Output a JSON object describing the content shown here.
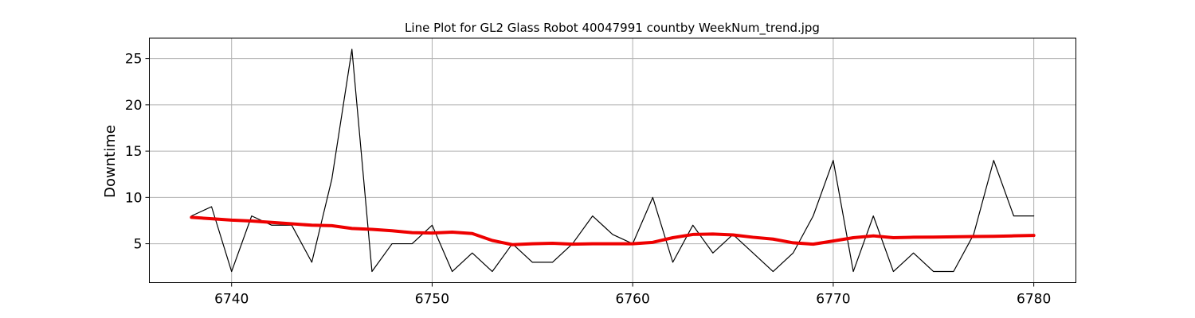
{
  "chart_data": {
    "type": "line",
    "title": "Line Plot for GL2 Glass Robot 40047991 countby WeekNum_trend.jpg",
    "xlabel": "",
    "ylabel": "Downtime",
    "xlim": [
      6735.9,
      6782.1
    ],
    "ylim": [
      0.8,
      27.2
    ],
    "x_ticks": [
      6740,
      6750,
      6760,
      6770,
      6780
    ],
    "y_ticks": [
      5,
      10,
      15,
      20,
      25
    ],
    "grid": true,
    "x": [
      6738,
      6739,
      6740,
      6741,
      6742,
      6743,
      6744,
      6745,
      6746,
      6747,
      6748,
      6749,
      6750,
      6751,
      6752,
      6753,
      6754,
      6755,
      6756,
      6757,
      6758,
      6759,
      6760,
      6761,
      6762,
      6763,
      6764,
      6765,
      6766,
      6767,
      6768,
      6769,
      6770,
      6771,
      6772,
      6773,
      6774,
      6775,
      6776,
      6777,
      6778,
      6779,
      6780
    ],
    "series": [
      {
        "values": [
          8,
          9,
          2,
          8,
          7,
          7,
          3,
          12,
          26,
          2,
          5,
          5,
          7,
          2,
          4,
          2,
          5,
          3,
          3,
          5,
          8,
          6,
          5,
          10,
          3,
          7,
          4,
          6,
          4,
          2,
          4,
          8,
          14,
          2,
          8,
          2,
          4,
          2,
          2,
          6,
          14,
          8,
          8
        ],
        "color": "#000000",
        "style": "thin"
      },
      {
        "values": [
          7.85,
          7.7,
          7.55,
          7.45,
          7.3,
          7.15,
          7.0,
          6.95,
          6.65,
          6.55,
          6.4,
          6.2,
          6.15,
          6.25,
          6.1,
          5.35,
          4.9,
          5.0,
          5.05,
          4.95,
          5.0,
          5.0,
          5.0,
          5.15,
          5.65,
          6.0,
          6.05,
          5.95,
          5.7,
          5.5,
          5.1,
          4.95,
          5.3,
          5.65,
          5.85,
          5.65,
          5.7,
          5.72,
          5.75,
          5.78,
          5.8,
          5.85,
          5.9
        ],
        "color": "#ee0000",
        "style": "thick"
      }
    ]
  }
}
